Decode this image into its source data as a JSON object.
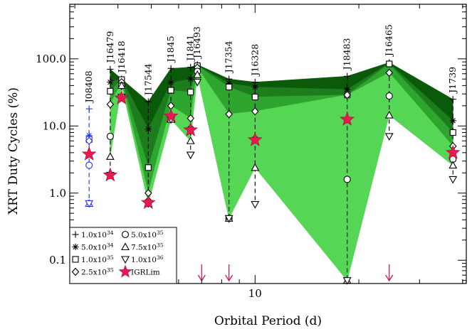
{
  "chart_data": {
    "type": "line",
    "title": "",
    "xlabel": "Orbital Period (d)",
    "ylabel": "XRT Duty Cycles (%)",
    "xscale": "log",
    "yscale": "log",
    "xlim": [
      2.9,
      41
    ],
    "ylim": [
      0.045,
      650
    ],
    "y_tick_labels": [
      "0.1",
      "1.0",
      "10.0",
      "100.0"
    ],
    "y_tick_values": [
      0.1,
      1,
      10,
      100
    ],
    "x_tick_labels": [
      "10"
    ],
    "x_tick_values": [
      10
    ],
    "grid": false,
    "legend_position": "bottom-left",
    "bands": [
      {
        "between": [
          "1.0x10^34",
          "5.0x10^34"
        ],
        "color": "#0a5a0a"
      },
      {
        "between": [
          "5.0x10^34",
          "1.0x10^35"
        ],
        "color": "#1d7d1d"
      },
      {
        "between": [
          "1.0x10^35",
          "2.5x10^35"
        ],
        "color": "#2ea52e"
      },
      {
        "between": [
          "2.5x10^35",
          "7.5x10^35"
        ],
        "color": "#55d655"
      }
    ],
    "sources": [
      {
        "label": "J08408",
        "color": "#2233dd",
        "x": 3.3,
        "values": {
          "1.0x10^34": 18,
          "5.0x10^34": 7.2,
          "1.0x10^35": 6.3,
          "2.5x10^35": 6.0,
          "5.0x10^35": 2.6,
          "7.5x10^35": 0.7,
          "1.0x10^36": 0.7
        },
        "igrlim": 3.8
      },
      {
        "label": "J16479",
        "color": "#000000",
        "x": 3.8,
        "values": {
          "1.0x10^34": 70,
          "5.0x10^34": 45,
          "1.0x10^35": 33,
          "2.5x10^35": 21,
          "5.0x10^35": 7,
          "7.5x10^35": 3.5,
          "1.0x10^36": 1.85
        },
        "igrlim": 1.85
      },
      {
        "label": "J16418",
        "color": "#000000",
        "x": 4.1,
        "values": {
          "1.0x10^34": 50,
          "5.0x10^34": 50,
          "1.0x10^35": 49,
          "2.5x10^35": 45,
          "5.0x10^35": 40,
          "7.5x10^35": 40,
          "1.0x10^36": 27
        },
        "igrlim": 26
      },
      {
        "label": "J17544",
        "color": "#000000",
        "x": 4.9,
        "values": {
          "1.0x10^34": 23,
          "5.0x10^34": 9,
          "1.0x10^35": 2.4,
          "2.5x10^35": 1.0,
          "5.0x10^35": 0.75,
          "7.5x10^35": 0.7,
          "1.0x10^36": 0.7
        },
        "igrlim": 0.72
      },
      {
        "label": "J1845",
        "color": "#000000",
        "x": 5.7,
        "values": {
          "1.0x10^34": 72,
          "5.0x10^34": 44,
          "1.0x10^35": 34,
          "2.5x10^35": 20,
          "5.0x10^35": 13,
          "7.5x10^35": 12.5,
          "1.0x10^36": 12.5
        },
        "igrlim": 14
      },
      {
        "label": "J1841",
        "color": "#000000",
        "x": 6.5,
        "values": {
          "1.0x10^34": 75,
          "5.0x10^34": 50,
          "1.0x10^35": 32,
          "2.5x10^35": 13,
          "5.0x10^35": 9,
          "7.5x10^35": 6,
          "1.0x10^36": 3.7
        },
        "igrlim": 8.7
      },
      {
        "label": "J16493",
        "color": "#000000",
        "x": 6.8,
        "values": {
          "1.0x10^34": 82,
          "5.0x10^34": 80,
          "1.0x10^35": 79,
          "2.5x10^35": 74,
          "5.0x10^35": 65,
          "7.5x10^35": 58,
          "1.0x10^36": 45
        },
        "igrlim": null
      },
      {
        "label": "J17354",
        "color": "#000000",
        "x": 8.4,
        "values": {
          "1.0x10^34": 50,
          "5.0x10^34": 43,
          "1.0x10^35": 38,
          "2.5x10^35": 15,
          "5.0x10^35": 0.42,
          "7.5x10^35": 0.42,
          "1.0x10^36": 0.42
        },
        "igrlim": null
      },
      {
        "label": "J16328",
        "color": "#000000",
        "x": 10.0,
        "values": {
          "1.0x10^34": 45,
          "5.0x10^34": 38,
          "1.0x10^35": 27,
          "2.5x10^35": 16.5,
          "5.0x10^35": 6.3,
          "7.5x10^35": 2.4,
          "1.0x10^36": 0.68
        },
        "igrlim": 6.2
      },
      {
        "label": "J18483",
        "color": "#000000",
        "x": 18.5,
        "values": {
          "1.0x10^34": 55,
          "5.0x10^34": 35,
          "1.0x10^35": 29,
          "2.5x10^35": 29,
          "5.0x10^35": 1.6,
          "7.5x10^35": 0.05,
          "1.0x10^36": 0.05
        },
        "igrlim": 12.5
      },
      {
        "label": "J16465",
        "color": "#000000",
        "x": 24.5,
        "values": {
          "1.0x10^34": 88,
          "5.0x10^34": 86,
          "1.0x10^35": 84,
          "2.5x10^35": 62,
          "5.0x10^35": 28,
          "7.5x10^35": 14.5,
          "1.0x10^36": 7
        },
        "igrlim": null
      },
      {
        "label": "J1739",
        "color": "#000000",
        "x": 37.5,
        "values": {
          "1.0x10^34": 25,
          "5.0x10^34": 12,
          "1.0x10^35": 8,
          "2.5x10^35": 5,
          "5.0x10^35": 3.2,
          "7.5x10^35": 2.6,
          "1.0x10^36": 1.6
        },
        "igrlim": 4.0
      }
    ],
    "upper_limit_arrows_x": [
      7.0,
      8.4,
      24.5
    ],
    "legend": {
      "entries": [
        {
          "label": "1.0x10",
          "exp": "34",
          "marker": "plus"
        },
        {
          "label": "5.0x10",
          "exp": "34",
          "marker": "asterisk"
        },
        {
          "label": "1.0x10",
          "exp": "35",
          "marker": "square"
        },
        {
          "label": "2.5x10",
          "exp": "35",
          "marker": "diamond"
        },
        {
          "label": "5.0x10",
          "exp": "35",
          "marker": "circle"
        },
        {
          "label": "7.5x10",
          "exp": "35",
          "marker": "triangle-up"
        },
        {
          "label": "1.0x10",
          "exp": "36",
          "marker": "triangle-down"
        },
        {
          "label": "IGRLim",
          "marker": "star"
        }
      ]
    },
    "colors": {
      "star": "#e8194f",
      "arrow": "#d0185a",
      "blue": "#2233dd"
    }
  }
}
